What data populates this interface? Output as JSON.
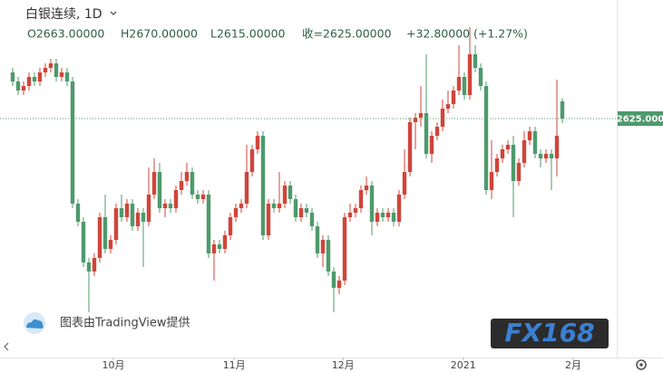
{
  "chart_data": {
    "type": "candlestick",
    "title": "白银连续, 1D",
    "ohlc_labels": [
      "O2663.00000",
      "H2670.00000",
      "L2615.00000",
      "收=2625.00000",
      "+32.80000",
      "(+1.27%)"
    ],
    "attribution": "图表由TradingView提供",
    "logo": "FX168",
    "up_color": "#d0453a",
    "down_color": "#4e9a6c",
    "last_price": {
      "value": 2625,
      "label": "2625.000"
    },
    "xlim": [
      -2.33,
      111
    ],
    "xticks": [
      {
        "value": 18.5,
        "label": "10月"
      },
      {
        "value": 40.7,
        "label": "11月"
      },
      {
        "value": 60.7,
        "label": "12月"
      },
      {
        "value": 82.8,
        "label": "2021"
      },
      {
        "value": 103,
        "label": "2月"
      }
    ],
    "ylim": [
      2097,
      2887
    ],
    "values": [
      [
        2727,
        2737,
        2697,
        2707
      ],
      [
        2707,
        2717,
        2677,
        2687
      ],
      [
        2687,
        2707,
        2677,
        2697
      ],
      [
        2697,
        2727,
        2687,
        2717
      ],
      [
        2717,
        2727,
        2697,
        2707
      ],
      [
        2707,
        2737,
        2697,
        2727
      ],
      [
        2727,
        2747,
        2717,
        2737
      ],
      [
        2737,
        2757,
        2727,
        2747
      ],
      [
        2747,
        2757,
        2707,
        2717
      ],
      [
        2717,
        2737,
        2707,
        2727
      ],
      [
        2727,
        2737,
        2697,
        2707
      ],
      [
        2707,
        2717,
        2427,
        2437
      ],
      [
        2437,
        2447,
        2387,
        2397
      ],
      [
        2397,
        2407,
        2297,
        2307
      ],
      [
        2307,
        2317,
        2197,
        2287
      ],
      [
        2287,
        2327,
        2277,
        2317
      ],
      [
        2317,
        2417,
        2307,
        2407
      ],
      [
        2407,
        2457,
        2327,
        2337
      ],
      [
        2337,
        2367,
        2327,
        2357
      ],
      [
        2357,
        2437,
        2347,
        2427
      ],
      [
        2427,
        2457,
        2397,
        2407
      ],
      [
        2407,
        2447,
        2397,
        2437
      ],
      [
        2437,
        2447,
        2377,
        2387
      ],
      [
        2387,
        2427,
        2377,
        2417
      ],
      [
        2417,
        2427,
        2297,
        2397
      ],
      [
        2397,
        2517,
        2387,
        2457
      ],
      [
        2457,
        2537,
        2447,
        2507
      ],
      [
        2507,
        2527,
        2417,
        2427
      ],
      [
        2427,
        2447,
        2407,
        2437
      ],
      [
        2437,
        2447,
        2417,
        2427
      ],
      [
        2427,
        2477,
        2417,
        2467
      ],
      [
        2467,
        2507,
        2457,
        2487
      ],
      [
        2487,
        2527,
        2477,
        2507
      ],
      [
        2507,
        2517,
        2447,
        2457
      ],
      [
        2457,
        2467,
        2437,
        2447
      ],
      [
        2447,
        2467,
        2437,
        2457
      ],
      [
        2457,
        2467,
        2317,
        2327
      ],
      [
        2327,
        2357,
        2267,
        2347
      ],
      [
        2347,
        2357,
        2327,
        2337
      ],
      [
        2337,
        2377,
        2327,
        2367
      ],
      [
        2367,
        2417,
        2357,
        2407
      ],
      [
        2407,
        2437,
        2397,
        2427
      ],
      [
        2427,
        2447,
        2417,
        2437
      ],
      [
        2437,
        2567,
        2427,
        2507
      ],
      [
        2507,
        2567,
        2497,
        2557
      ],
      [
        2557,
        2597,
        2547,
        2587
      ],
      [
        2587,
        2597,
        2357,
        2367
      ],
      [
        2367,
        2447,
        2357,
        2437
      ],
      [
        2437,
        2447,
        2417,
        2427
      ],
      [
        2427,
        2507,
        2417,
        2437
      ],
      [
        2437,
        2487,
        2427,
        2477
      ],
      [
        2477,
        2487,
        2437,
        2447
      ],
      [
        2447,
        2457,
        2397,
        2407
      ],
      [
        2407,
        2437,
        2397,
        2427
      ],
      [
        2427,
        2437,
        2407,
        2417
      ],
      [
        2417,
        2427,
        2377,
        2387
      ],
      [
        2387,
        2397,
        2317,
        2327
      ],
      [
        2327,
        2367,
        2297,
        2357
      ],
      [
        2357,
        2367,
        2277,
        2287
      ],
      [
        2287,
        2297,
        2197,
        2251
      ],
      [
        2251,
        2277,
        2237,
        2267
      ],
      [
        2267,
        2417,
        2257,
        2407
      ],
      [
        2407,
        2437,
        2397,
        2417
      ],
      [
        2417,
        2437,
        2407,
        2427
      ],
      [
        2427,
        2477,
        2417,
        2467
      ],
      [
        2467,
        2497,
        2457,
        2477
      ],
      [
        2477,
        2487,
        2367,
        2397
      ],
      [
        2397,
        2427,
        2387,
        2417
      ],
      [
        2417,
        2427,
        2397,
        2407
      ],
      [
        2407,
        2427,
        2397,
        2417
      ],
      [
        2417,
        2427,
        2387,
        2397
      ],
      [
        2397,
        2467,
        2387,
        2457
      ],
      [
        2457,
        2557,
        2447,
        2507
      ],
      [
        2507,
        2627,
        2497,
        2617
      ],
      [
        2617,
        2637,
        2557,
        2627
      ],
      [
        2627,
        2697,
        2607,
        2637
      ],
      [
        2637,
        2767,
        2537,
        2547
      ],
      [
        2547,
        2597,
        2527,
        2587
      ],
      [
        2587,
        2617,
        2577,
        2607
      ],
      [
        2607,
        2667,
        2597,
        2647
      ],
      [
        2647,
        2687,
        2637,
        2657
      ],
      [
        2657,
        2697,
        2647,
        2687
      ],
      [
        2687,
        2787,
        2677,
        2717
      ],
      [
        2717,
        2727,
        2667,
        2677
      ],
      [
        2677,
        2827,
        2667,
        2767
      ],
      [
        2767,
        2787,
        2727,
        2737
      ],
      [
        2737,
        2747,
        2687,
        2697
      ],
      [
        2697,
        2707,
        2457,
        2467
      ],
      [
        2467,
        2577,
        2447,
        2507
      ],
      [
        2507,
        2547,
        2497,
        2537
      ],
      [
        2537,
        2567,
        2527,
        2557
      ],
      [
        2557,
        2577,
        2547,
        2567
      ],
      [
        2567,
        2587,
        2407,
        2487
      ],
      [
        2487,
        2537,
        2477,
        2527
      ],
      [
        2527,
        2597,
        2517,
        2577
      ],
      [
        2577,
        2607,
        2567,
        2597
      ],
      [
        2597,
        2607,
        2537,
        2547
      ],
      [
        2547,
        2557,
        2517,
        2537
      ],
      [
        2537,
        2557,
        2527,
        2547
      ],
      [
        2547,
        2557,
        2467,
        2537
      ],
      [
        2537,
        2711,
        2497,
        2587
      ],
      [
        2663,
        2670,
        2615,
        2625
      ]
    ]
  }
}
